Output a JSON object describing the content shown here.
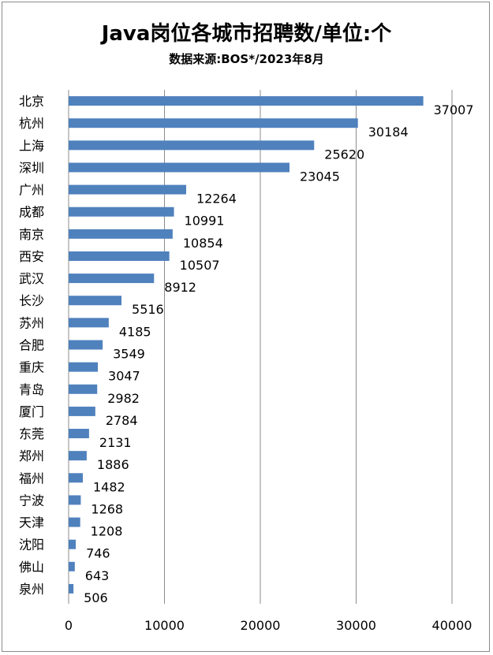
{
  "chart_data": {
    "type": "bar",
    "orientation": "horizontal",
    "title": "Java岗位各城市招聘数/单位:个",
    "subtitle": "数据来源:BOS*/2023年8月",
    "categories": [
      "北京",
      "杭州",
      "上海",
      "深圳",
      "广州",
      "成都",
      "南京",
      "西安",
      "武汉",
      "长沙",
      "苏州",
      "合肥",
      "重庆",
      "青岛",
      "厦门",
      "东莞",
      "郑州",
      "福州",
      "宁波",
      "天津",
      "沈阳",
      "佛山",
      "泉州"
    ],
    "values": [
      37007,
      30184,
      25620,
      23045,
      12264,
      10991,
      10854,
      10507,
      8912,
      5516,
      4185,
      3549,
      3047,
      2982,
      2784,
      2131,
      1886,
      1482,
      1268,
      1208,
      746,
      643,
      506
    ],
    "xlim": [
      0,
      40000
    ],
    "xticks": [
      0,
      10000,
      20000,
      30000,
      40000
    ],
    "xlabel": "",
    "ylabel": "",
    "grid": "vertical",
    "bar_color": "#4f81bd",
    "data_labels": true
  }
}
